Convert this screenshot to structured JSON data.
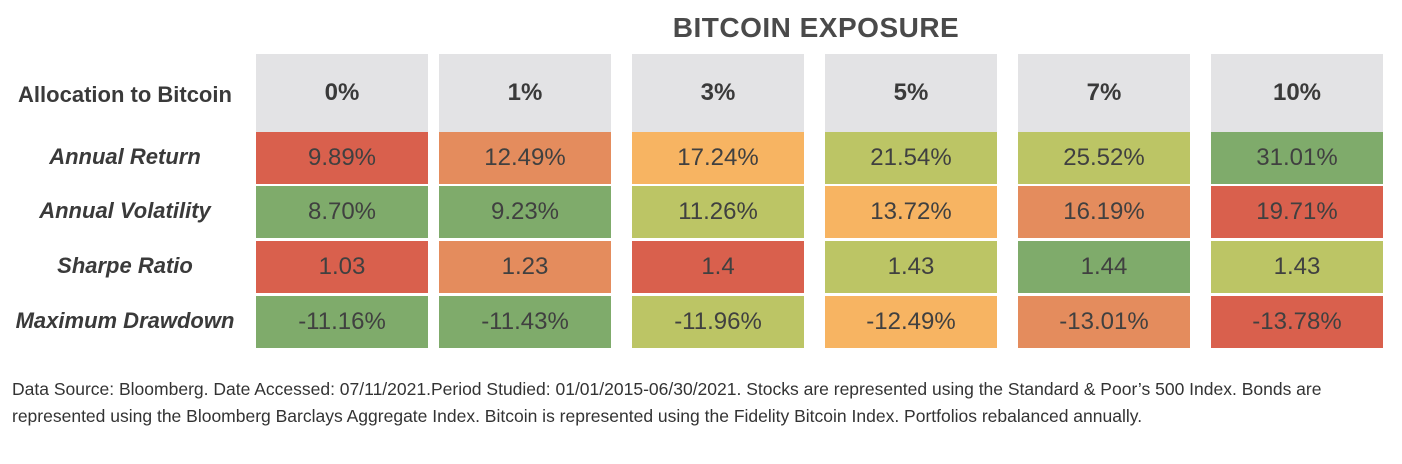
{
  "title": "BITCOIN EXPOSURE",
  "row_header": "Allocation to Bitcoin",
  "colors": {
    "red": "#d9604d",
    "orange": "#e48c5d",
    "light_orange": "#f7b462",
    "yellow_green": "#bcc565",
    "green": "#7fab6b",
    "header_gray": "#e3e3e5"
  },
  "chart_data": {
    "type": "table",
    "columns": [
      "0%",
      "1%",
      "3%",
      "5%",
      "7%",
      "10%"
    ],
    "rows": [
      {
        "label": "Annual Return",
        "values": [
          "9.89%",
          "12.49%",
          "17.24%",
          "21.54%",
          "25.52%",
          "31.01%"
        ],
        "colors": [
          "red",
          "orange",
          "light_orange",
          "yellow_green",
          "yellow_green",
          "green"
        ]
      },
      {
        "label": "Annual Volatility",
        "values": [
          "8.70%",
          "9.23%",
          "11.26%",
          "13.72%",
          "16.19%",
          "19.71%"
        ],
        "colors": [
          "green",
          "green",
          "yellow_green",
          "light_orange",
          "orange",
          "red"
        ]
      },
      {
        "label": "Sharpe Ratio",
        "values": [
          "1.03",
          "1.23",
          "1.4",
          "1.43",
          "1.44",
          "1.43"
        ],
        "colors": [
          "red",
          "orange",
          "red",
          "yellow_green",
          "green",
          "yellow_green"
        ]
      },
      {
        "label": "Maximum Drawdown",
        "values": [
          "-11.16%",
          "-11.43%",
          "-11.96%",
          "-12.49%",
          "-13.01%",
          "-13.78%"
        ],
        "colors": [
          "green",
          "green",
          "yellow_green",
          "light_orange",
          "orange",
          "red"
        ]
      }
    ]
  },
  "footnote": "Data Source: Bloomberg. Date Accessed: 07/11/2021.Period Studied: 01/01/2015-06/30/2021. Stocks are represented using the Standard & Poor’s 500 Index. Bonds are represented using the Bloomberg Barclays Aggregate Index. Bitcoin is represented using the Fidelity Bitcoin Index. Portfolios rebalanced annually."
}
